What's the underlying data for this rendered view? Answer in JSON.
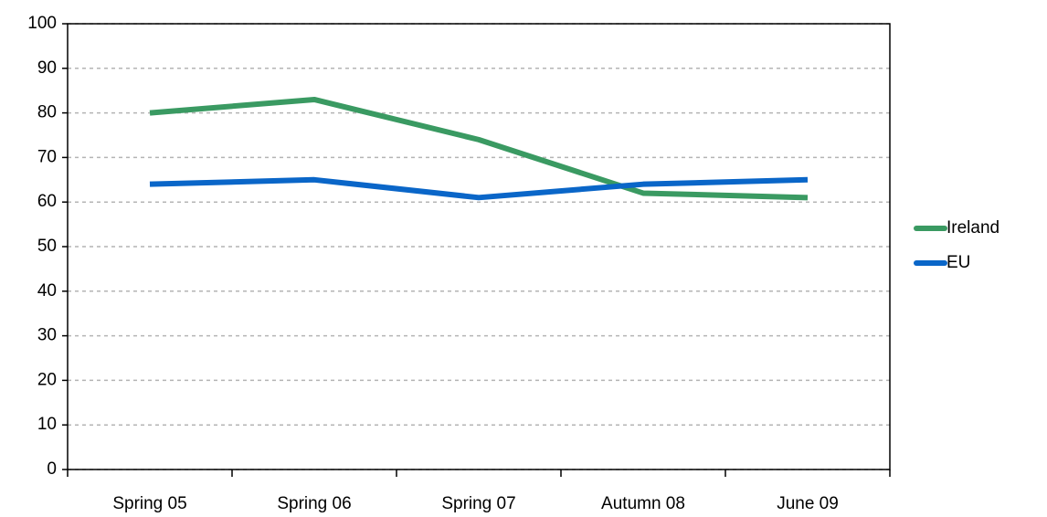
{
  "chart_data": {
    "type": "line",
    "categories": [
      "Spring 05",
      "Spring 06",
      "Spring 07",
      "Autumn 08",
      "June 09"
    ],
    "series": [
      {
        "name": "Ireland",
        "color": "#3a9a62",
        "values": [
          80,
          83,
          74,
          62,
          61
        ]
      },
      {
        "name": "EU",
        "color": "#0a66c8",
        "values": [
          64,
          65,
          61,
          64,
          65
        ]
      }
    ],
    "ylim": [
      0,
      100
    ],
    "yticks": [
      0,
      10,
      20,
      30,
      40,
      50,
      60,
      70,
      80,
      90,
      100
    ],
    "grid": true,
    "legend": "right"
  }
}
